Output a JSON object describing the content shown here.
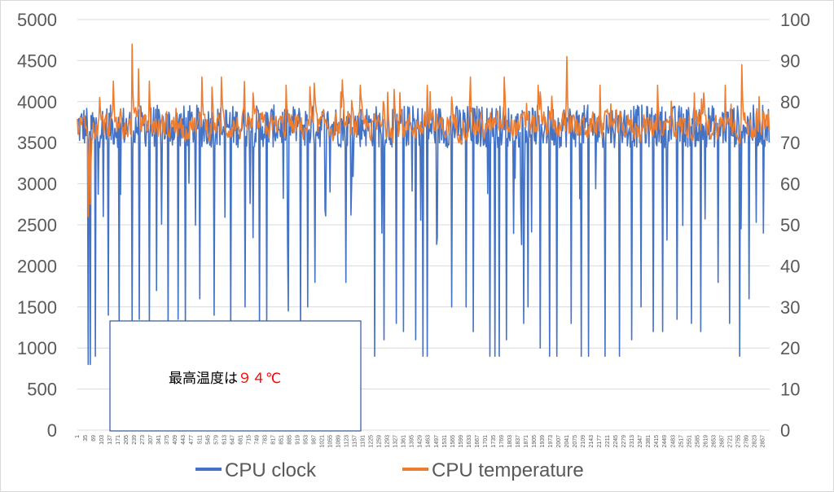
{
  "chart_data": {
    "type": "line",
    "x": {
      "start": 1,
      "end": 2886,
      "step": 34,
      "tick_labels": [
        "1",
        "35",
        "69",
        "103",
        "137",
        "171",
        "205",
        "239",
        "273",
        "307",
        "341",
        "375",
        "409",
        "443",
        "477",
        "511",
        "545",
        "579",
        "613",
        "647",
        "681",
        "715",
        "749",
        "783",
        "817",
        "851",
        "885",
        "919",
        "953",
        "987",
        "1021",
        "1055",
        "1089",
        "1123",
        "1157",
        "1191",
        "1225",
        "1259",
        "1293",
        "1327",
        "1361",
        "1395",
        "1429",
        "1463",
        "1497",
        "1531",
        "1565",
        "1599",
        "1633",
        "1667",
        "1701",
        "1735",
        "1769",
        "1803",
        "1837",
        "1871",
        "1905",
        "1939",
        "1973",
        "2007",
        "2041",
        "2075",
        "2109",
        "2143",
        "2177",
        "2211",
        "2245",
        "2279",
        "2313",
        "2347",
        "2381",
        "2415",
        "2449",
        "2483",
        "2517",
        "2551",
        "2585",
        "2619",
        "2653",
        "2687",
        "2721",
        "2755",
        "2789",
        "2823",
        "2857"
      ]
    },
    "y_left": {
      "min": 0,
      "max": 5000,
      "step": 500,
      "tick_labels": [
        "0",
        "500",
        "1000",
        "1500",
        "2000",
        "2500",
        "3000",
        "3500",
        "4000",
        "4500",
        "5000"
      ]
    },
    "y_right": {
      "min": 0,
      "max": 100,
      "step": 10,
      "tick_labels": [
        "0",
        "10",
        "20",
        "30",
        "40",
        "50",
        "60",
        "70",
        "80",
        "90",
        "100"
      ]
    },
    "grid": true,
    "legend_position": "bottom",
    "series": [
      {
        "name": "CPU clock",
        "axis": "left",
        "color": "#4472c4",
        "baseline": 3700,
        "noise": 260,
        "max": 4400,
        "dips": [
          [
            45,
            800
          ],
          [
            55,
            800
          ],
          [
            75,
            900
          ],
          [
            130,
            1400
          ],
          [
            175,
            1300
          ],
          [
            230,
            1300
          ],
          [
            260,
            1350
          ],
          [
            300,
            1300
          ],
          [
            330,
            1700
          ],
          [
            380,
            1250
          ],
          [
            420,
            1350
          ],
          [
            450,
            1250
          ],
          [
            510,
            1600
          ],
          [
            570,
            1400
          ],
          [
            640,
            1250
          ],
          [
            700,
            1500
          ],
          [
            760,
            1300
          ],
          [
            790,
            1300
          ],
          [
            880,
            1450
          ],
          [
            930,
            1250
          ],
          [
            960,
            1500
          ],
          [
            990,
            1800
          ],
          [
            1120,
            1800
          ],
          [
            1240,
            900
          ],
          [
            1280,
            1100
          ],
          [
            1330,
            1300
          ],
          [
            1360,
            1200
          ],
          [
            1410,
            1100
          ],
          [
            1440,
            900
          ],
          [
            1460,
            900
          ],
          [
            1560,
            1500
          ],
          [
            1620,
            1500
          ],
          [
            1650,
            1200
          ],
          [
            1720,
            900
          ],
          [
            1740,
            900
          ],
          [
            1760,
            900
          ],
          [
            1790,
            1100
          ],
          [
            1860,
            1300
          ],
          [
            1880,
            1500
          ],
          [
            1930,
            1000
          ],
          [
            1970,
            900
          ],
          [
            2000,
            900
          ],
          [
            2060,
            1300
          ],
          [
            2100,
            900
          ],
          [
            2130,
            900
          ],
          [
            2200,
            900
          ],
          [
            2260,
            900
          ],
          [
            2310,
            1100
          ],
          [
            2350,
            1500
          ],
          [
            2400,
            1200
          ],
          [
            2440,
            1200
          ],
          [
            2500,
            1350
          ],
          [
            2560,
            1300
          ],
          [
            2600,
            1200
          ],
          [
            2670,
            1800
          ],
          [
            2720,
            1300
          ],
          [
            2760,
            900
          ],
          [
            2800,
            1600
          ],
          [
            2860,
            2400
          ]
        ]
      },
      {
        "name": "CPU temperature",
        "axis": "right",
        "color": "#ed7d31",
        "baseline": 74,
        "noise": 5,
        "spikes": [
          [
            45,
            52
          ],
          [
            55,
            55
          ],
          [
            150,
            85
          ],
          [
            230,
            94
          ],
          [
            255,
            88
          ],
          [
            300,
            85
          ],
          [
            520,
            86
          ],
          [
            600,
            86
          ],
          [
            870,
            84
          ],
          [
            1180,
            84
          ],
          [
            1320,
            83
          ],
          [
            1460,
            84
          ],
          [
            1640,
            86
          ],
          [
            1780,
            86
          ],
          [
            1920,
            84
          ],
          [
            2040,
            91
          ],
          [
            2180,
            84
          ],
          [
            2420,
            84
          ],
          [
            2700,
            84
          ],
          [
            2770,
            89
          ],
          [
            2850,
            72
          ]
        ]
      }
    ],
    "annotations": [
      {
        "text": "最高温度は",
        "highlight": "９４℃",
        "highlight_color": "#ff0000"
      }
    ]
  }
}
